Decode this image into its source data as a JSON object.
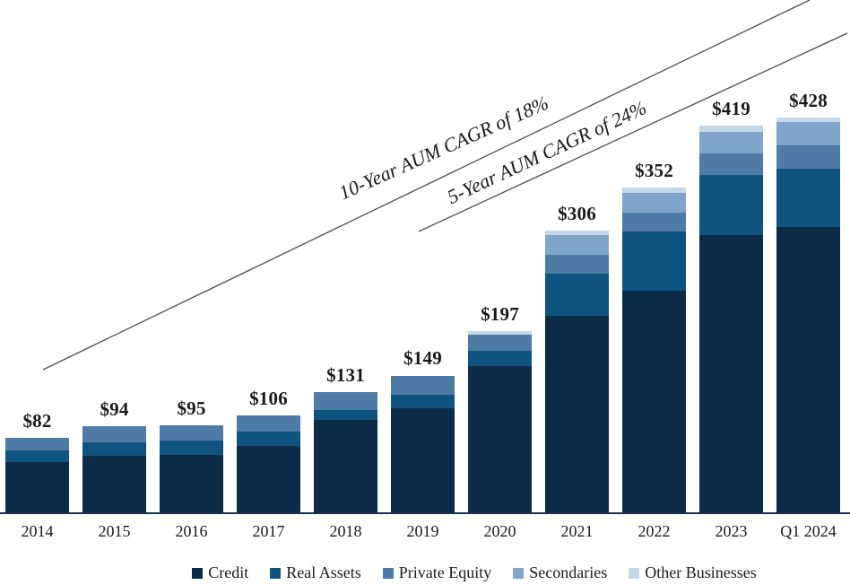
{
  "chart_data": {
    "type": "bar",
    "stacked": true,
    "title": "",
    "unit": "$ billions",
    "grid": false,
    "legend_position": "bottom",
    "categories": [
      "2014",
      "2015",
      "2016",
      "2017",
      "2018",
      "2019",
      "2020",
      "2021",
      "2022",
      "2023",
      "Q1 2024"
    ],
    "totals": [
      82,
      94,
      95,
      106,
      131,
      149,
      197,
      306,
      352,
      419,
      428
    ],
    "total_labels": [
      "$82",
      "$94",
      "$95",
      "$106",
      "$131",
      "$149",
      "$197",
      "$306",
      "$352",
      "$419",
      "$428"
    ],
    "series": [
      {
        "name": "Credit",
        "color": "#0c2b47",
        "values": [
          55,
          62,
          63,
          73,
          101,
          114,
          159,
          214,
          241,
          301,
          310
        ]
      },
      {
        "name": "Real Assets",
        "color": "#0f5480",
        "values": [
          13,
          15,
          16,
          15,
          11,
          14,
          17,
          45,
          64,
          65,
          63
        ]
      },
      {
        "name": "Private Equity",
        "color": "#4e7ca6",
        "values": [
          14,
          17,
          16,
          18,
          19,
          21,
          17,
          21,
          20,
          23,
          25
        ]
      },
      {
        "name": "Secondaries",
        "color": "#7fa5cb",
        "values": [
          0,
          0,
          0,
          0,
          0,
          0,
          0,
          21,
          22,
          24,
          25
        ]
      },
      {
        "name": "Other Businesses",
        "color": "#c5d7e8",
        "values": [
          0,
          0,
          0,
          0,
          0,
          0,
          4,
          5,
          5,
          6,
          5
        ]
      }
    ],
    "annotations": [
      {
        "text": "10-Year AUM CAGR of 18%"
      },
      {
        "text": "5-Year AUM CAGR of 24%"
      }
    ]
  }
}
